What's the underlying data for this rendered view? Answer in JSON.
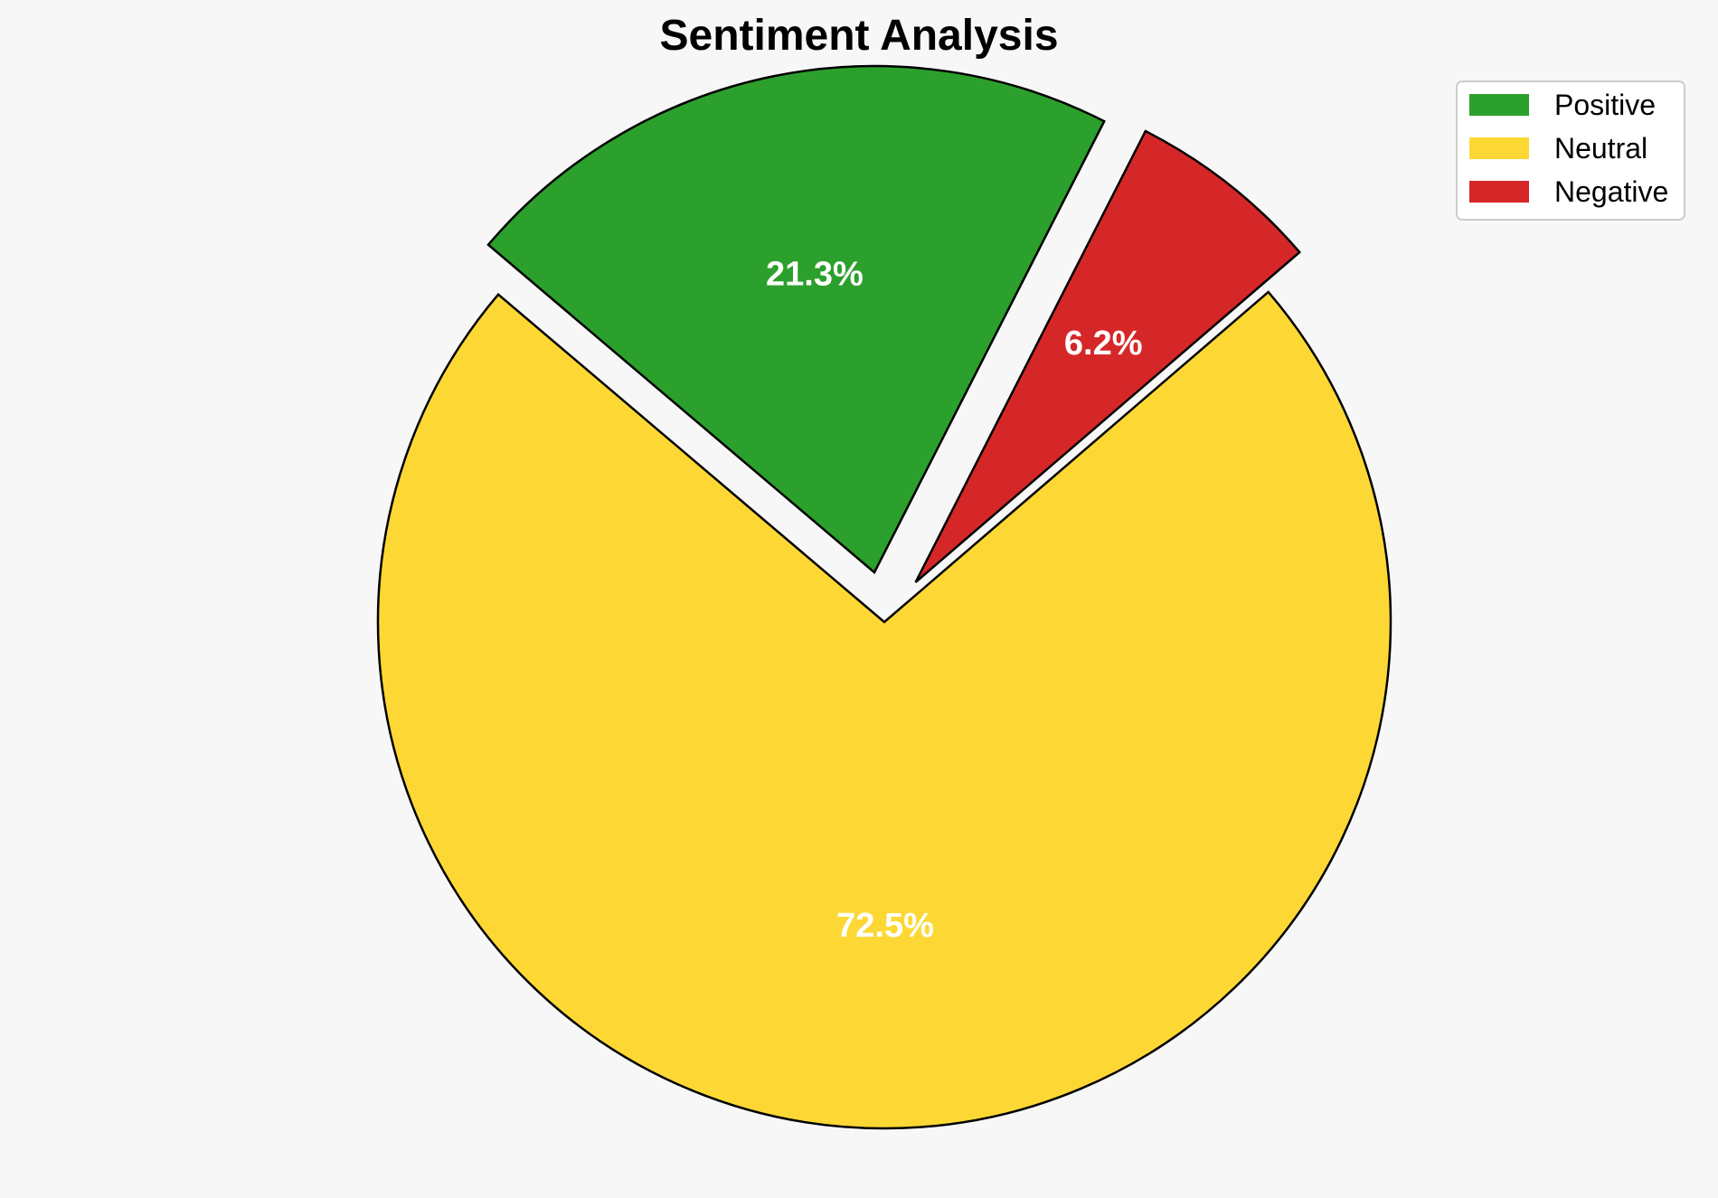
{
  "chart_data": {
    "type": "pie",
    "title": "Sentiment Analysis",
    "slices": [
      {
        "label": "Positive",
        "value": 21.3,
        "display": "21.3%",
        "color": "#2ca02c",
        "exploded": true
      },
      {
        "label": "Neutral",
        "value": 72.5,
        "display": "72.5%",
        "color": "#fdd835",
        "exploded": false
      },
      {
        "label": "Negative",
        "value": 6.2,
        "display": "6.2%",
        "color": "#d62728",
        "exploded": true
      }
    ],
    "legend": {
      "placement": "top-right"
    },
    "edge_color": "#000000",
    "background": "#f7f7f7"
  }
}
